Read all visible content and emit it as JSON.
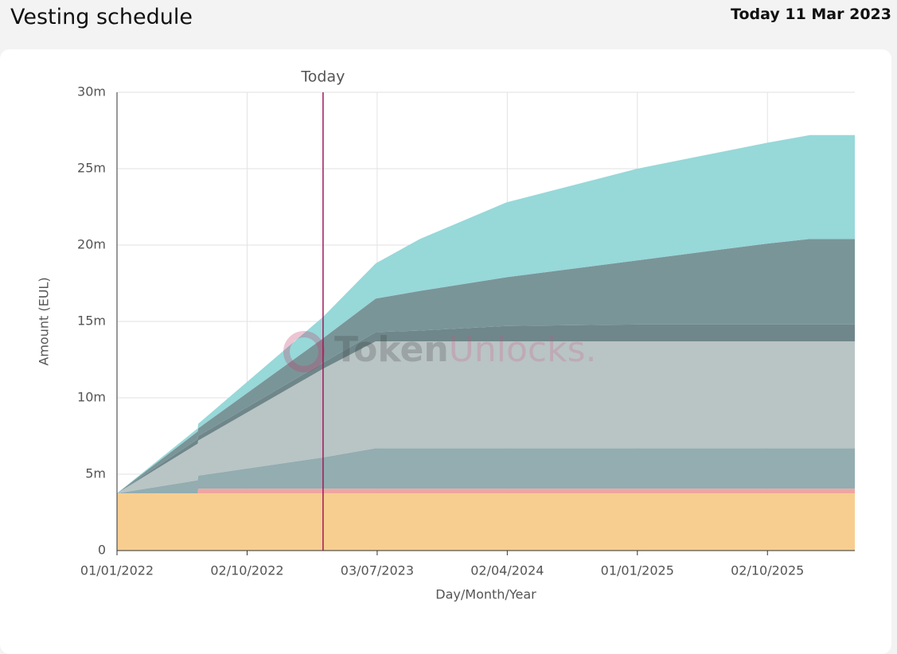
{
  "header": {
    "title": "Vesting schedule",
    "today": "Today 11 Mar 2023"
  },
  "chart_data": {
    "type": "area",
    "stacked": true,
    "x_label": "Day/Month/Year",
    "y_label": "Amount (EUL)",
    "watermark": [
      "Token",
      "Unlocks."
    ],
    "marker": {
      "x": "2023-03-11",
      "label": "Today",
      "color": "#a0185a"
    },
    "x": [
      "2022-01-01",
      "2022-06-20",
      "2022-06-21",
      "2023-03-11",
      "2023-06-30",
      "2023-10-01",
      "2024-04-01",
      "2025-01-01",
      "2025-10-02",
      "2025-12-31",
      "2026-04-04"
    ],
    "xlim": [
      "2022-01-01",
      "2026-04-04"
    ],
    "xticks": [
      {
        "value": "2022-01-01",
        "label": "01/01/2022"
      },
      {
        "value": "2022-10-02",
        "label": "02/10/2022"
      },
      {
        "value": "2023-07-03",
        "label": "03/07/2023"
      },
      {
        "value": "2024-04-02",
        "label": "02/04/2024"
      },
      {
        "value": "2025-01-01",
        "label": "01/01/2025"
      },
      {
        "value": "2025-10-02",
        "label": "02/10/2025"
      }
    ],
    "ylim": [
      0,
      30000000
    ],
    "yticks": [
      0,
      {
        "value": 5000000,
        "label": "5m"
      },
      {
        "value": 10000000,
        "label": "10m"
      },
      {
        "value": 15000000,
        "label": "15m"
      },
      {
        "value": 20000000,
        "label": "20m"
      },
      {
        "value": 25000000,
        "label": "25m"
      },
      {
        "value": 30000000,
        "label": "30m"
      }
    ],
    "grid": true,
    "series": [
      {
        "color": "#f7ce8f",
        "values": [
          3750000,
          3750000,
          3750000,
          3750000,
          3750000,
          3750000,
          3750000,
          3750000,
          3750000,
          3750000,
          3750000
        ]
      },
      {
        "color": "#f0a5a0",
        "values": [
          0,
          0,
          300000,
          300000,
          300000,
          300000,
          300000,
          300000,
          300000,
          300000,
          300000
        ]
      },
      {
        "color": "#93adb0",
        "values": [
          0,
          850000,
          850000,
          2050000,
          2650000,
          2650000,
          2650000,
          2650000,
          2650000,
          2650000,
          2650000
        ]
      },
      {
        "color": "#b9c4c5",
        "values": [
          0,
          2400000,
          2300000,
          5800000,
          7000000,
          7000000,
          7000000,
          7000000,
          7000000,
          7000000,
          7000000
        ]
      },
      {
        "color": "#6f878a",
        "values": [
          0,
          300000,
          300000,
          400000,
          600000,
          700000,
          1000000,
          1100000,
          1100000,
          1100000,
          1100000
        ]
      },
      {
        "color": "#7a9598",
        "values": [
          0,
          500000,
          500000,
          1600000,
          2200000,
          2600000,
          3200000,
          4200000,
          5300000,
          5600000,
          5600000
        ]
      },
      {
        "color": "#97d8d9",
        "values": [
          0,
          200000,
          300000,
          1400000,
          2300000,
          3400000,
          4900000,
          6000000,
          6600000,
          6800000,
          6800000
        ]
      }
    ]
  }
}
